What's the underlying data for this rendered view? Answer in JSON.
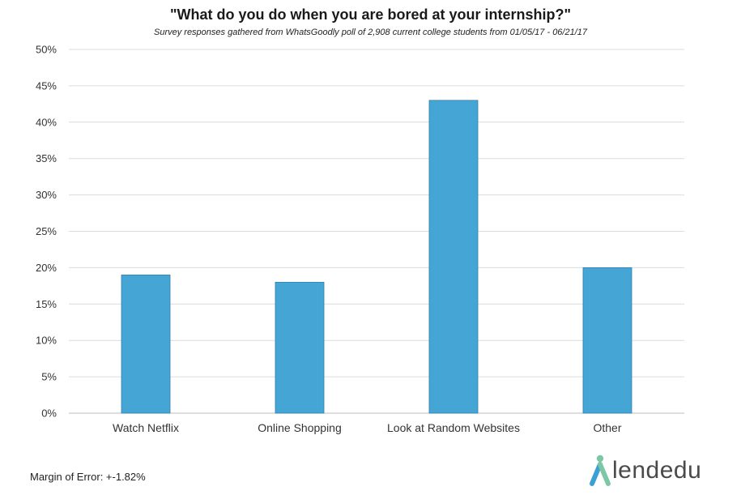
{
  "chart_data": {
    "type": "bar",
    "title": "\"What do you do when you are bored at your internship?\"",
    "subtitle": "Survey responses gathered from WhatsGoodly poll of 2,908 current college students from 01/05/17 - 06/21/17",
    "categories": [
      "Watch Netflix",
      "Online Shopping",
      "Look at Random Websites",
      "Other"
    ],
    "values": [
      19,
      18,
      43,
      20
    ],
    "ylim": [
      0,
      50
    ],
    "yticks": [
      0,
      5,
      10,
      15,
      20,
      25,
      30,
      35,
      40,
      45,
      50
    ],
    "ytick_labels": [
      "0%",
      "5%",
      "10%",
      "15%",
      "20%",
      "25%",
      "30%",
      "35%",
      "40%",
      "45%",
      "50%"
    ],
    "xlabel": "",
    "ylabel": "",
    "grid": true,
    "legend": "none",
    "bar_color": "#45a5d5",
    "bar_edge_color": "#2f7fae"
  },
  "footnote": "Margin of Error: +-1.82%",
  "brand": {
    "name": "lendedu",
    "icon": "lendedu-logo-icon",
    "icon_colors": [
      "#7cc8a6",
      "#3d9fd3"
    ]
  }
}
